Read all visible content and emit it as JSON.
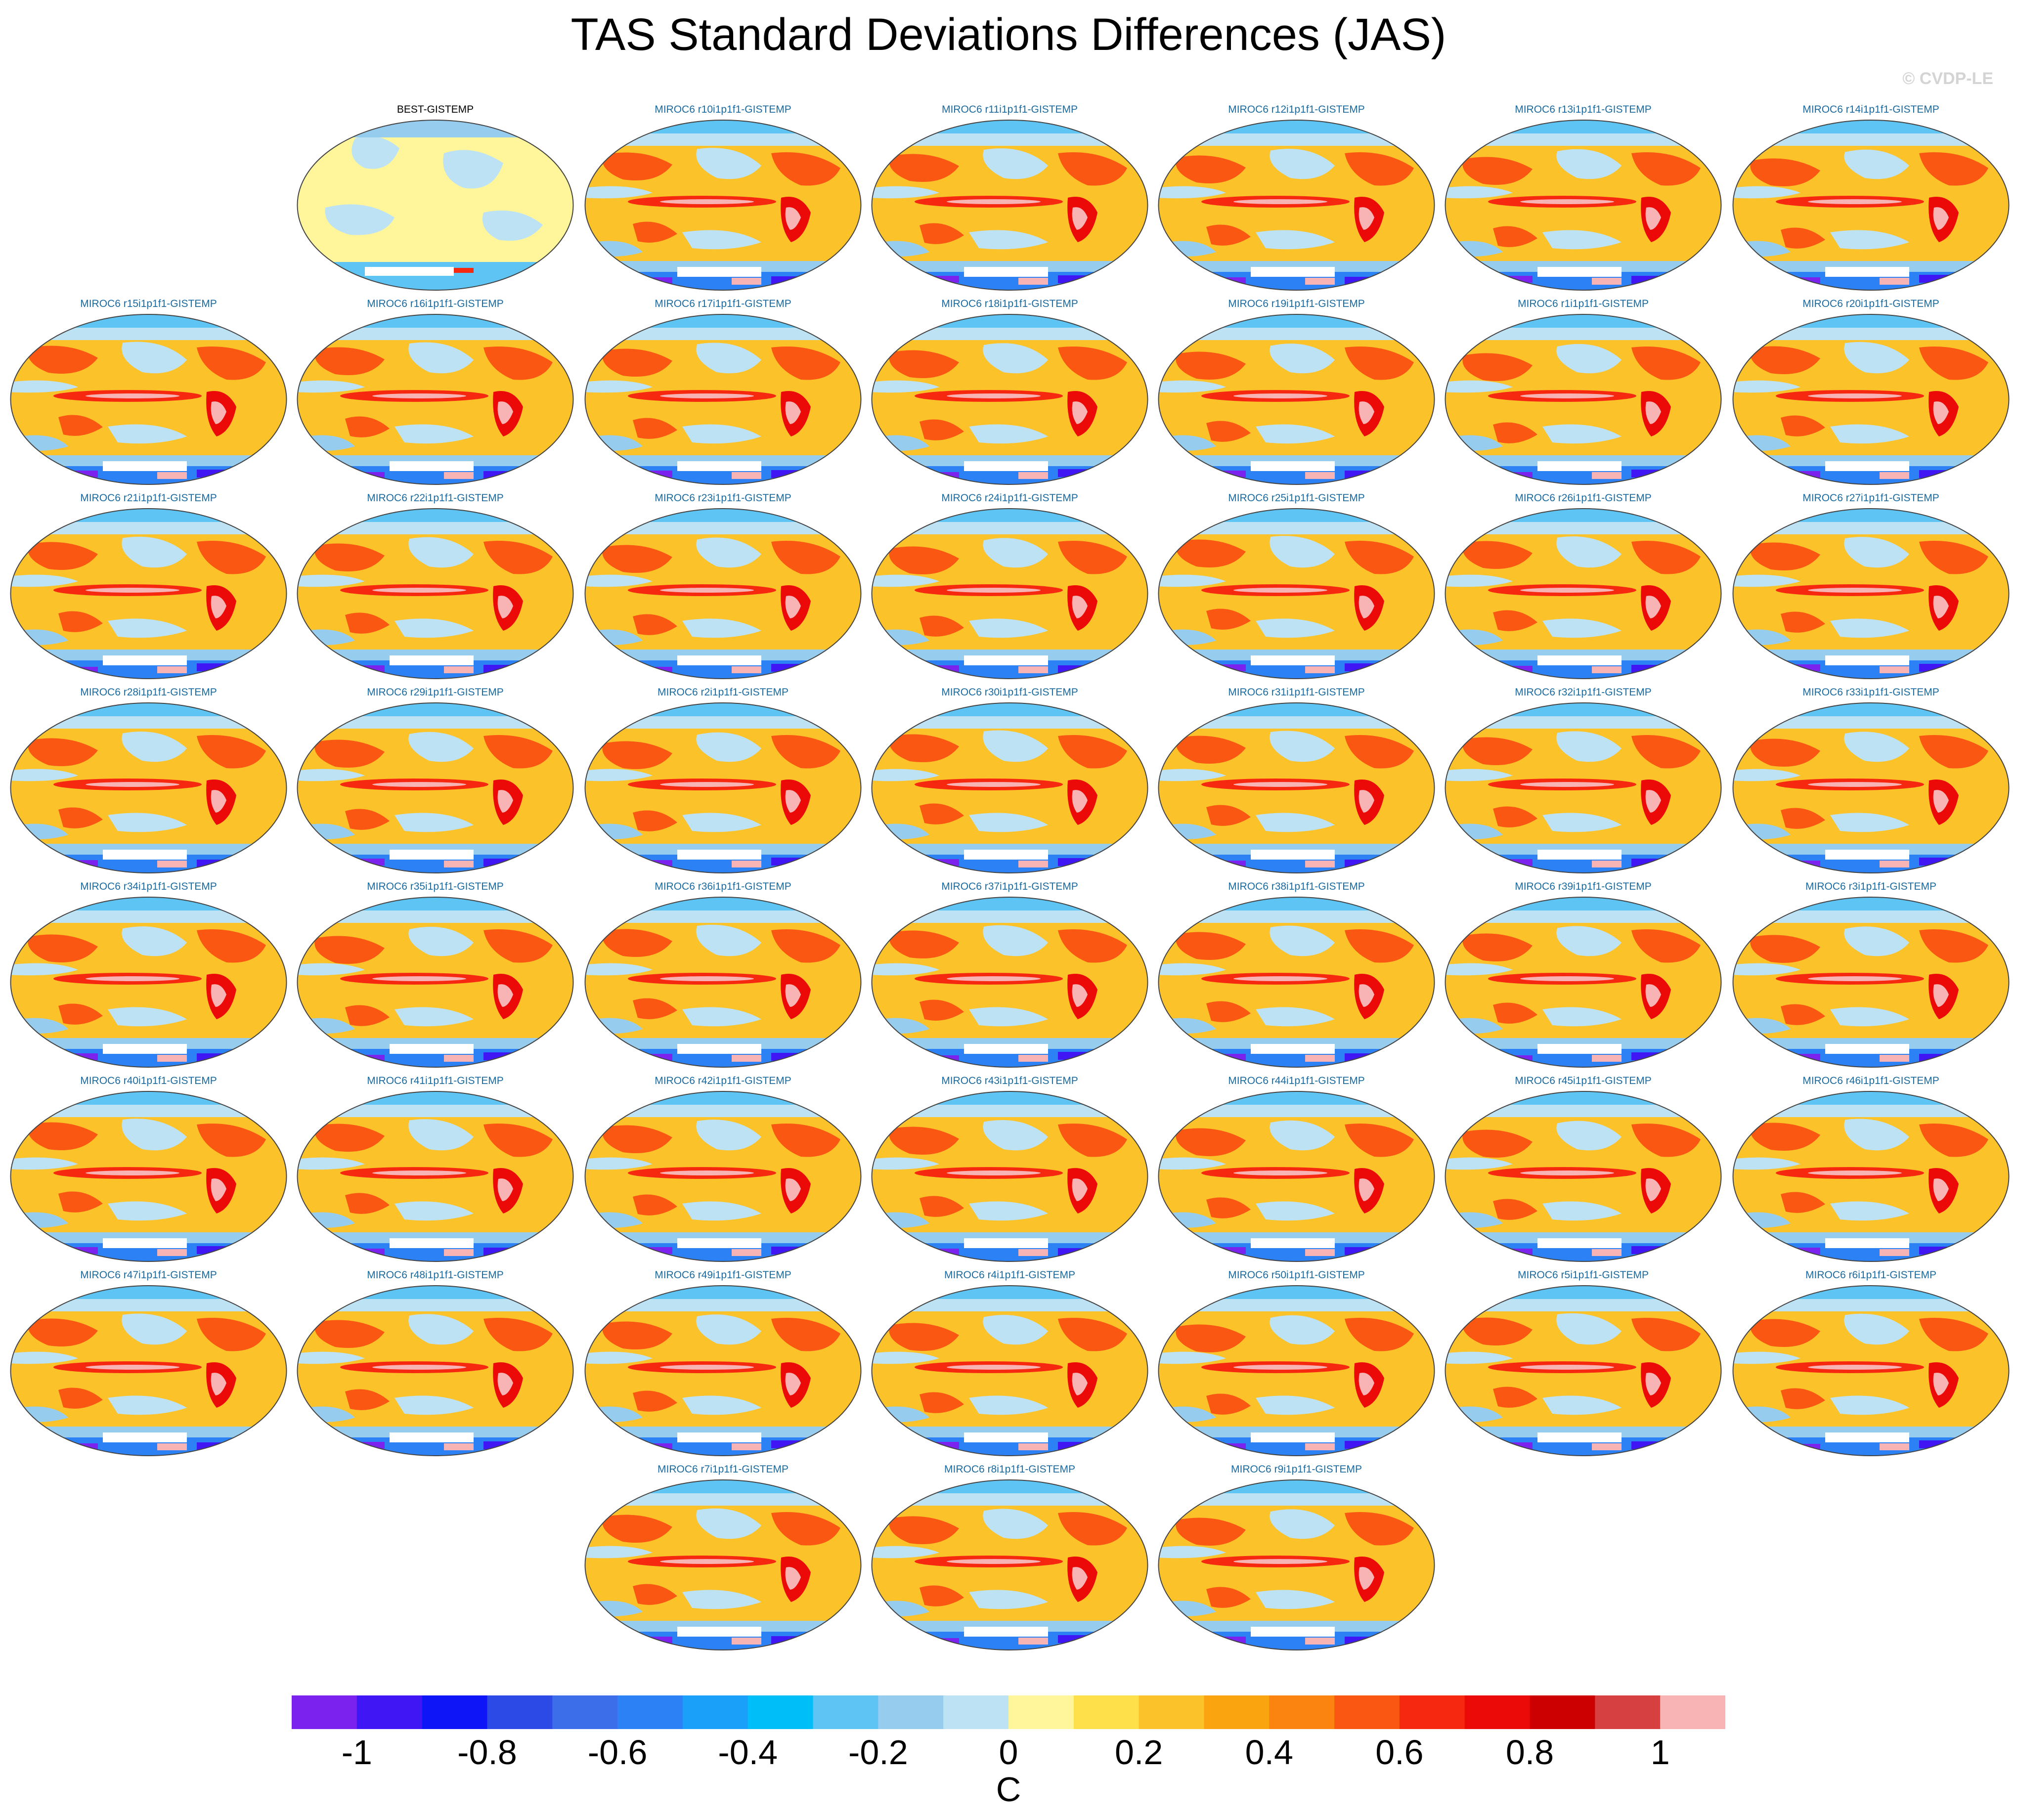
{
  "title": "TAS Standard Deviations Differences (JAS)",
  "credit": "© CVDP-LE",
  "panels": [
    {
      "label": "BEST-GISTEMP",
      "obs": true
    },
    {
      "label": "MIROC6 r10i1p1f1-GISTEMP"
    },
    {
      "label": "MIROC6 r11i1p1f1-GISTEMP"
    },
    {
      "label": "MIROC6 r12i1p1f1-GISTEMP"
    },
    {
      "label": "MIROC6 r13i1p1f1-GISTEMP"
    },
    {
      "label": "MIROC6 r14i1p1f1-GISTEMP"
    },
    {
      "label": "MIROC6 r15i1p1f1-GISTEMP"
    },
    {
      "label": "MIROC6 r16i1p1f1-GISTEMP"
    },
    {
      "label": "MIROC6 r17i1p1f1-GISTEMP"
    },
    {
      "label": "MIROC6 r18i1p1f1-GISTEMP"
    },
    {
      "label": "MIROC6 r19i1p1f1-GISTEMP"
    },
    {
      "label": "MIROC6 r1i1p1f1-GISTEMP"
    },
    {
      "label": "MIROC6 r20i1p1f1-GISTEMP"
    },
    {
      "label": "MIROC6 r21i1p1f1-GISTEMP"
    },
    {
      "label": "MIROC6 r22i1p1f1-GISTEMP"
    },
    {
      "label": "MIROC6 r23i1p1f1-GISTEMP"
    },
    {
      "label": "MIROC6 r24i1p1f1-GISTEMP"
    },
    {
      "label": "MIROC6 r25i1p1f1-GISTEMP"
    },
    {
      "label": "MIROC6 r26i1p1f1-GISTEMP"
    },
    {
      "label": "MIROC6 r27i1p1f1-GISTEMP"
    },
    {
      "label": "MIROC6 r28i1p1f1-GISTEMP"
    },
    {
      "label": "MIROC6 r29i1p1f1-GISTEMP"
    },
    {
      "label": "MIROC6 r2i1p1f1-GISTEMP"
    },
    {
      "label": "MIROC6 r30i1p1f1-GISTEMP"
    },
    {
      "label": "MIROC6 r31i1p1f1-GISTEMP"
    },
    {
      "label": "MIROC6 r32i1p1f1-GISTEMP"
    },
    {
      "label": "MIROC6 r33i1p1f1-GISTEMP"
    },
    {
      "label": "MIROC6 r34i1p1f1-GISTEMP"
    },
    {
      "label": "MIROC6 r35i1p1f1-GISTEMP"
    },
    {
      "label": "MIROC6 r36i1p1f1-GISTEMP"
    },
    {
      "label": "MIROC6 r37i1p1f1-GISTEMP"
    },
    {
      "label": "MIROC6 r38i1p1f1-GISTEMP"
    },
    {
      "label": "MIROC6 r39i1p1f1-GISTEMP"
    },
    {
      "label": "MIROC6 r3i1p1f1-GISTEMP"
    },
    {
      "label": "MIROC6 r40i1p1f1-GISTEMP"
    },
    {
      "label": "MIROC6 r41i1p1f1-GISTEMP"
    },
    {
      "label": "MIROC6 r42i1p1f1-GISTEMP"
    },
    {
      "label": "MIROC6 r43i1p1f1-GISTEMP"
    },
    {
      "label": "MIROC6 r44i1p1f1-GISTEMP"
    },
    {
      "label": "MIROC6 r45i1p1f1-GISTEMP"
    },
    {
      "label": "MIROC6 r46i1p1f1-GISTEMP"
    },
    {
      "label": "MIROC6 r47i1p1f1-GISTEMP"
    },
    {
      "label": "MIROC6 r48i1p1f1-GISTEMP"
    },
    {
      "label": "MIROC6 r49i1p1f1-GISTEMP"
    },
    {
      "label": "MIROC6 r4i1p1f1-GISTEMP"
    },
    {
      "label": "MIROC6 r50i1p1f1-GISTEMP"
    },
    {
      "label": "MIROC6 r5i1p1f1-GISTEMP"
    },
    {
      "label": "MIROC6 r6i1p1f1-GISTEMP"
    },
    {
      "label": "MIROC6 r7i1p1f1-GISTEMP"
    },
    {
      "label": "MIROC6 r8i1p1f1-GISTEMP"
    },
    {
      "label": "MIROC6 r9i1p1f1-GISTEMP"
    }
  ],
  "colorbar": {
    "units": "C",
    "colors": [
      "#7b22ee",
      "#4016f5",
      "#0e16f7",
      "#2c4ae6",
      "#3b6ee8",
      "#2c82f5",
      "#1aa0f8",
      "#00bff8",
      "#5dc4f4",
      "#96ccee",
      "#bde2f4",
      "#fff59a",
      "#fde04a",
      "#fbc22a",
      "#faa410",
      "#fb8410",
      "#fa5812",
      "#f72810",
      "#ec0a08",
      "#cc0000",
      "#d64040",
      "#f8b4b4"
    ],
    "tick_labels": [
      "-1",
      "-0.8",
      "-0.6",
      "-0.4",
      "-0.2",
      "0",
      "0.2",
      "0.4",
      "0.6",
      "0.8",
      "1"
    ]
  }
}
